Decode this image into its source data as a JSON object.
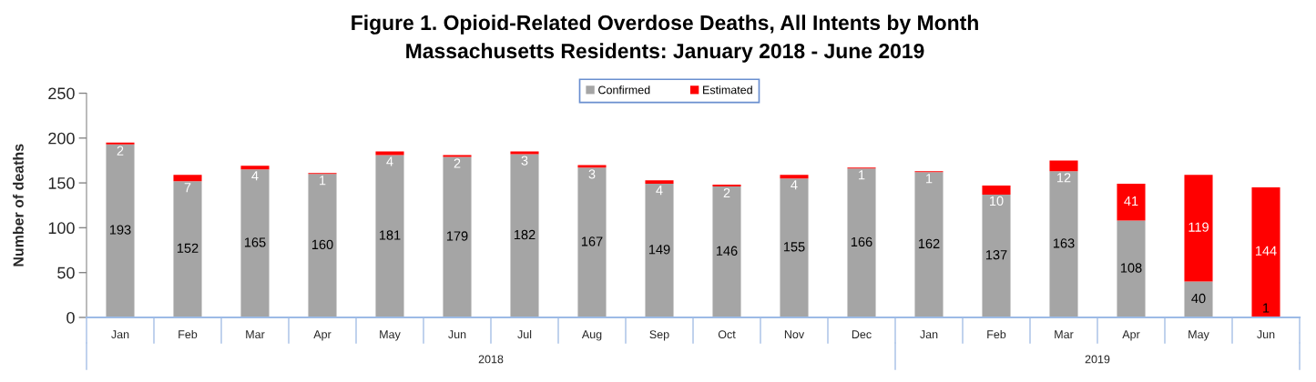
{
  "chart_data": {
    "type": "bar",
    "stacked": true,
    "title": "Figure 1. Opioid-Related Overdose Deaths, All Intents by Month",
    "subtitle": "Massachusetts Residents: January 2018 - June 2019",
    "ylabel": "Number of deaths",
    "categories": [
      "Jan",
      "Feb",
      "Mar",
      "Apr",
      "May",
      "Jun",
      "Jul",
      "Aug",
      "Sep",
      "Oct",
      "Nov",
      "Dec",
      "Jan",
      "Feb",
      "Mar",
      "Apr",
      "May",
      "Jun"
    ],
    "series": [
      {
        "name": "Confirmed",
        "color": "#a5a5a5",
        "values": [
          193,
          152,
          165,
          160,
          181,
          179,
          182,
          167,
          149,
          146,
          155,
          166,
          162,
          137,
          163,
          108,
          40,
          1
        ]
      },
      {
        "name": "Estimated",
        "color": "#ff0000",
        "values": [
          2,
          7,
          4,
          1,
          4,
          2,
          3,
          3,
          4,
          2,
          4,
          1,
          1,
          10,
          12,
          41,
          119,
          144
        ]
      }
    ],
    "ylim": [
      0,
      250
    ],
    "yticks": [
      0,
      50,
      100,
      150,
      200,
      250
    ],
    "legend": "top",
    "data_labels": true,
    "annotations": [
      "2018",
      "2019"
    ]
  }
}
